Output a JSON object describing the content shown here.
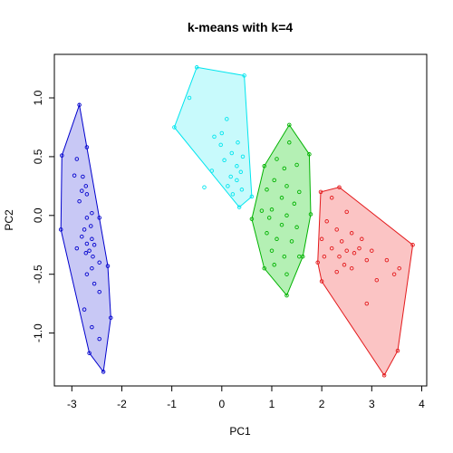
{
  "chart_data": {
    "type": "scatter",
    "title": "k-means with k=4",
    "xlabel": "PC1",
    "ylabel": "PC2",
    "xlim": [
      -3.35,
      4.1
    ],
    "ylim": [
      -1.45,
      1.37
    ],
    "x_ticks": [
      -3,
      -2,
      -1,
      0,
      1,
      2,
      3,
      4
    ],
    "y_ticks": [
      -1.0,
      -0.5,
      0.0,
      0.5,
      1.0
    ],
    "x_tick_labels": [
      "-3",
      "-2",
      "-1",
      "0",
      "1",
      "2",
      "3",
      "4"
    ],
    "y_tick_labels": [
      "-1.0",
      "-0.5",
      "0.0",
      "0.5",
      "1.0"
    ],
    "grid": false,
    "legend": "none",
    "series": [
      {
        "color": "#0000cd",
        "fill": "#c8c8f5",
        "hull": [
          [
            -2.85,
            0.94
          ],
          [
            -2.28,
            -0.43
          ],
          [
            -2.22,
            -0.87
          ],
          [
            -2.37,
            -1.33
          ],
          [
            -2.65,
            -1.17
          ],
          [
            -3.22,
            -0.12
          ],
          [
            -3.2,
            0.51
          ]
        ],
        "points": [
          [
            -2.85,
            0.94
          ],
          [
            -2.28,
            -0.43
          ],
          [
            -2.22,
            -0.87
          ],
          [
            -2.37,
            -1.33
          ],
          [
            -2.65,
            -1.17
          ],
          [
            -3.22,
            -0.12
          ],
          [
            -3.2,
            0.51
          ],
          [
            -2.9,
            0.48
          ],
          [
            -2.7,
            0.58
          ],
          [
            -2.78,
            0.33
          ],
          [
            -2.95,
            0.34
          ],
          [
            -2.72,
            0.25
          ],
          [
            -2.8,
            0.21
          ],
          [
            -2.7,
            0.18
          ],
          [
            -2.85,
            0.12
          ],
          [
            -2.6,
            0.02
          ],
          [
            -2.7,
            -0.02
          ],
          [
            -2.45,
            -0.02
          ],
          [
            -2.62,
            -0.09
          ],
          [
            -2.75,
            -0.12
          ],
          [
            -2.8,
            -0.18
          ],
          [
            -2.6,
            -0.2
          ],
          [
            -2.7,
            -0.24
          ],
          [
            -2.55,
            -0.25
          ],
          [
            -2.9,
            -0.28
          ],
          [
            -2.65,
            -0.3
          ],
          [
            -2.72,
            -0.32
          ],
          [
            -2.58,
            -0.35
          ],
          [
            -2.45,
            -0.4
          ],
          [
            -2.6,
            -0.45
          ],
          [
            -2.7,
            -0.5
          ],
          [
            -2.55,
            -0.58
          ],
          [
            -2.45,
            -0.65
          ],
          [
            -2.75,
            -0.8
          ],
          [
            -2.6,
            -0.95
          ],
          [
            -2.45,
            -1.05
          ]
        ]
      },
      {
        "color": "#00e5ee",
        "fill": "#c8fafc",
        "hull": [
          [
            -0.5,
            1.26
          ],
          [
            0.45,
            1.19
          ],
          [
            0.6,
            0.16
          ],
          [
            0.35,
            0.07
          ],
          [
            -0.95,
            0.75
          ]
        ],
        "points": [
          [
            -0.5,
            1.26
          ],
          [
            0.45,
            1.19
          ],
          [
            0.6,
            0.16
          ],
          [
            0.35,
            0.07
          ],
          [
            -0.95,
            0.75
          ],
          [
            -0.65,
            1.0
          ],
          [
            0.1,
            0.82
          ],
          [
            0.0,
            0.7
          ],
          [
            -0.15,
            0.67
          ],
          [
            -0.02,
            0.6
          ],
          [
            0.32,
            0.62
          ],
          [
            0.2,
            0.53
          ],
          [
            0.42,
            0.5
          ],
          [
            0.05,
            0.47
          ],
          [
            0.3,
            0.42
          ],
          [
            0.38,
            0.37
          ],
          [
            0.18,
            0.33
          ],
          [
            0.3,
            0.3
          ],
          [
            -0.2,
            0.38
          ],
          [
            0.12,
            0.25
          ],
          [
            -0.35,
            0.24
          ],
          [
            0.4,
            0.22
          ],
          [
            0.22,
            0.18
          ]
        ]
      },
      {
        "color": "#00b200",
        "fill": "#b4f0b4",
        "hull": [
          [
            1.35,
            0.77
          ],
          [
            1.75,
            0.52
          ],
          [
            1.78,
            0.01
          ],
          [
            1.62,
            -0.35
          ],
          [
            1.3,
            -0.68
          ],
          [
            0.85,
            -0.45
          ],
          [
            0.6,
            -0.03
          ],
          [
            0.85,
            0.42
          ]
        ],
        "points": [
          [
            1.35,
            0.77
          ],
          [
            1.75,
            0.52
          ],
          [
            1.78,
            0.01
          ],
          [
            1.62,
            -0.35
          ],
          [
            1.3,
            -0.68
          ],
          [
            0.85,
            -0.45
          ],
          [
            0.6,
            -0.03
          ],
          [
            0.85,
            0.42
          ],
          [
            1.35,
            0.62
          ],
          [
            1.1,
            0.48
          ],
          [
            1.25,
            0.4
          ],
          [
            1.5,
            0.43
          ],
          [
            1.05,
            0.3
          ],
          [
            1.3,
            0.25
          ],
          [
            1.55,
            0.2
          ],
          [
            0.9,
            0.22
          ],
          [
            1.2,
            0.15
          ],
          [
            1.45,
            0.1
          ],
          [
            1.0,
            0.05
          ],
          [
            1.3,
            0.0
          ],
          [
            0.8,
            0.04
          ],
          [
            0.95,
            -0.02
          ],
          [
            1.2,
            -0.08
          ],
          [
            1.5,
            -0.1
          ],
          [
            0.9,
            -0.15
          ],
          [
            1.1,
            -0.2
          ],
          [
            1.4,
            -0.22
          ],
          [
            1.0,
            -0.3
          ],
          [
            1.25,
            -0.35
          ],
          [
            1.55,
            -0.35
          ],
          [
            1.3,
            -0.5
          ],
          [
            1.05,
            -0.42
          ]
        ]
      },
      {
        "color": "#e31a1c",
        "fill": "#fbc4c4",
        "hull": [
          [
            1.98,
            0.2
          ],
          [
            2.35,
            0.24
          ],
          [
            3.82,
            -0.25
          ],
          [
            3.52,
            -1.15
          ],
          [
            3.25,
            -1.36
          ],
          [
            2.0,
            -0.56
          ],
          [
            1.92,
            -0.4
          ]
        ],
        "points": [
          [
            1.98,
            0.2
          ],
          [
            2.35,
            0.24
          ],
          [
            3.82,
            -0.25
          ],
          [
            3.52,
            -1.15
          ],
          [
            3.25,
            -1.36
          ],
          [
            2.0,
            -0.56
          ],
          [
            1.92,
            -0.4
          ],
          [
            2.2,
            0.15
          ],
          [
            2.5,
            0.03
          ],
          [
            2.1,
            -0.05
          ],
          [
            2.3,
            -0.12
          ],
          [
            2.0,
            -0.2
          ],
          [
            2.6,
            -0.15
          ],
          [
            2.4,
            -0.22
          ],
          [
            2.8,
            -0.2
          ],
          [
            2.2,
            -0.28
          ],
          [
            2.5,
            -0.3
          ],
          [
            2.35,
            -0.35
          ],
          [
            2.65,
            -0.32
          ],
          [
            2.05,
            -0.35
          ],
          [
            2.9,
            -0.38
          ],
          [
            2.75,
            -0.28
          ],
          [
            2.6,
            -0.45
          ],
          [
            2.45,
            -0.42
          ],
          [
            2.3,
            -0.48
          ],
          [
            3.0,
            -0.3
          ],
          [
            3.3,
            -0.38
          ],
          [
            3.45,
            -0.5
          ],
          [
            3.1,
            -0.55
          ],
          [
            3.55,
            -0.45
          ],
          [
            2.9,
            -0.75
          ]
        ]
      }
    ]
  }
}
